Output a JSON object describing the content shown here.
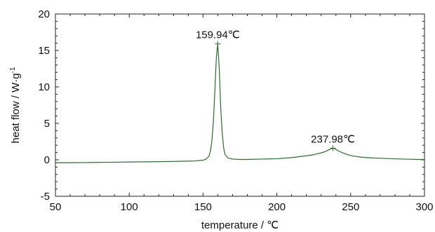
{
  "chart_data": {
    "type": "line",
    "xlabel": "temperature / ℃",
    "ylabel": "heat flow / W·g",
    "ylabel_superscript": "-1",
    "xlim": [
      50,
      300
    ],
    "ylim": [
      -5,
      20
    ],
    "x_ticks": [
      50,
      100,
      150,
      200,
      250,
      300
    ],
    "y_ticks": [
      -5,
      0,
      5,
      10,
      15,
      20
    ],
    "grid": false,
    "series": [
      {
        "color": "#2e6b2e",
        "x": [
          50,
          60,
          70,
          80,
          90,
          100,
          110,
          120,
          130,
          140,
          145,
          150,
          152,
          154,
          155,
          156,
          157,
          158,
          159,
          159.94,
          161,
          162,
          163,
          164,
          165,
          167,
          170,
          175,
          180,
          190,
          200,
          210,
          220,
          225,
          230,
          233,
          235,
          237,
          237.98,
          239,
          241,
          244,
          248,
          252,
          258,
          265,
          272,
          278,
          285,
          290,
          295,
          300
        ],
        "y": [
          -0.4,
          -0.4,
          -0.38,
          -0.35,
          -0.33,
          -0.3,
          -0.28,
          -0.25,
          -0.22,
          -0.18,
          -0.15,
          -0.05,
          0.1,
          0.5,
          1.2,
          2.6,
          5.2,
          9.5,
          14.0,
          15.9,
          12.5,
          7.0,
          3.6,
          1.6,
          0.7,
          0.25,
          0.1,
          0.05,
          0.05,
          0.1,
          0.15,
          0.3,
          0.55,
          0.7,
          0.95,
          1.15,
          1.35,
          1.55,
          1.6,
          1.55,
          1.3,
          1.0,
          0.7,
          0.5,
          0.35,
          0.25,
          0.2,
          0.15,
          0.1,
          0.08,
          0.05,
          0.05
        ]
      }
    ],
    "annotations": [
      {
        "text": "159.94℃",
        "x": 159.94,
        "y": 15.9
      },
      {
        "text": "237.98℃",
        "x": 237.98,
        "y": 1.6
      }
    ]
  }
}
